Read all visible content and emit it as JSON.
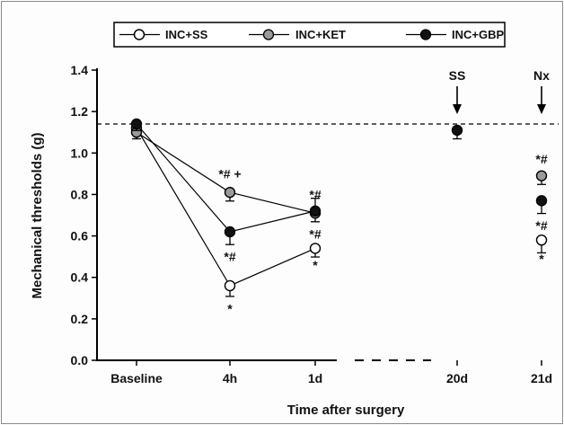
{
  "chart_data": {
    "type": "line",
    "title": "",
    "xlabel": "Time after surgery",
    "ylabel": "Mechanical thresholds (g)",
    "categories": [
      "Baseline",
      "4h",
      "1d",
      "20d",
      "21d"
    ],
    "yticks": [
      "0.0",
      "0.2",
      "0.4",
      "0.6",
      "0.8",
      "1.0",
      "1.2",
      "1.4"
    ],
    "ylim": [
      0,
      1.4
    ],
    "grid": false,
    "legend_position": "top",
    "reference_line": 1.14,
    "series": [
      {
        "name": "INC+SS",
        "marker": "open-circle",
        "color": "#ffffff",
        "values": [
          1.12,
          0.36,
          0.54,
          null,
          0.58
        ],
        "errors": [
          0.01,
          0.03,
          0.02,
          null,
          0.04
        ]
      },
      {
        "name": "INC+KET",
        "marker": "gray-circle",
        "color": "#9a9a9a",
        "values": [
          1.1,
          0.81,
          0.71,
          null,
          0.89
        ],
        "errors": [
          0.01,
          0.02,
          0.02,
          null,
          0.02
        ]
      },
      {
        "name": "INC+GBP",
        "marker": "filled-circle",
        "color": "#111111",
        "values": [
          1.14,
          0.62,
          0.72,
          1.11,
          0.77
        ],
        "errors": [
          0.01,
          0.04,
          0.04,
          0.02,
          0.04
        ]
      }
    ],
    "annotations": [
      {
        "category": "4h",
        "y": 0.9,
        "text": "*# +"
      },
      {
        "category": "4h",
        "y": 0.5,
        "text": "*#"
      },
      {
        "category": "4h",
        "y": 0.25,
        "text": "*"
      },
      {
        "category": "1d",
        "y": 0.8,
        "text": "*#"
      },
      {
        "category": "1d",
        "y": 0.61,
        "text": "*#"
      },
      {
        "category": "1d",
        "y": 0.46,
        "text": "*"
      },
      {
        "category": "21d",
        "y": 0.97,
        "text": "*#"
      },
      {
        "category": "21d",
        "y": 0.65,
        "text": "*#"
      },
      {
        "category": "21d",
        "y": 0.49,
        "text": "*"
      }
    ],
    "arrows": [
      {
        "category": "20d",
        "label": "SS"
      },
      {
        "category": "21d",
        "label": "Nx"
      }
    ]
  }
}
